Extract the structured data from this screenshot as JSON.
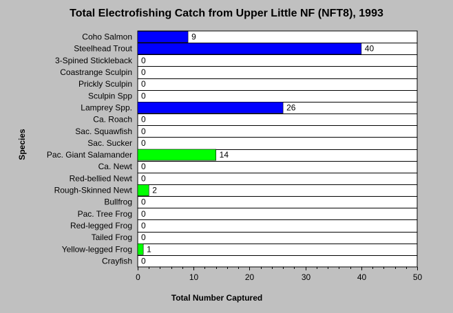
{
  "chart_data": {
    "type": "bar",
    "orientation": "horizontal",
    "title": "Total Electrofishing Catch from Upper Little NF (NFT8), 1993",
    "xlabel": "Total Number Captured",
    "ylabel": "Species",
    "xlim": [
      0,
      50
    ],
    "xticks": [
      0,
      10,
      20,
      30,
      40,
      50
    ],
    "grid": "horizontal",
    "categories": [
      "Coho Salmon",
      "Steelhead Trout",
      "3-Spined Stickleback",
      "Coastrange Sculpin",
      "Prickly Sculpin",
      "Sculpin Spp",
      "Lamprey Spp.",
      "Ca. Roach",
      "Sac. Squawfish",
      "Sac. Sucker",
      "Pac. Giant Salamander",
      "Ca. Newt",
      "Red-bellied Newt",
      "Rough-Skinned Newt",
      "Bullfrog",
      "Pac. Tree Frog",
      "Red-legged Frog",
      "Tailed Frog",
      "Yellow-legged Frog",
      "Crayfish"
    ],
    "values": [
      9,
      40,
      0,
      0,
      0,
      0,
      26,
      0,
      0,
      0,
      14,
      0,
      0,
      2,
      0,
      0,
      0,
      0,
      1,
      0
    ],
    "bar_colors": [
      "#0000ff",
      "#0000ff",
      "#0000ff",
      "#0000ff",
      "#0000ff",
      "#0000ff",
      "#0000ff",
      "#0000ff",
      "#0000ff",
      "#0000ff",
      "#00ff00",
      "#00ff00",
      "#00ff00",
      "#00ff00",
      "#00ff00",
      "#00ff00",
      "#00ff00",
      "#00ff00",
      "#00ff00",
      "#00ff00"
    ],
    "colors": {
      "background": "#c0c0c0",
      "plot_area": "#ffffff",
      "fish": "#0000ff",
      "amphibian": "#00ff00"
    }
  }
}
